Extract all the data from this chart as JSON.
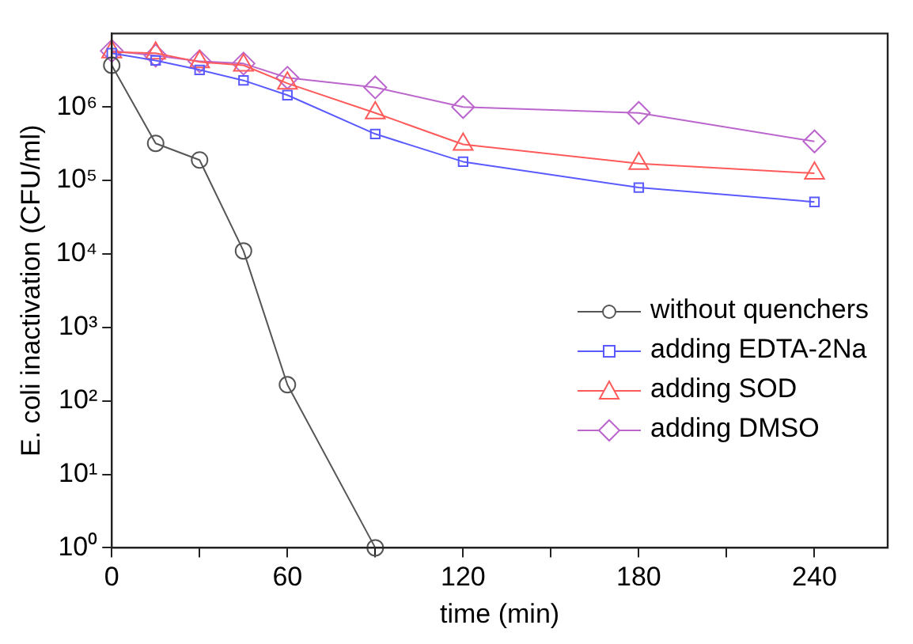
{
  "chart_data": {
    "type": "line",
    "xlabel": "time (min)",
    "ylabel": "E. coli inactivation (CFU/ml)",
    "log": "y",
    "grid": false,
    "legend": "right",
    "line_style": "solid",
    "xlim": [
      0,
      265
    ],
    "xticks": [
      0,
      {
        "value": 30,
        "label": null
      },
      60,
      {
        "value": 90,
        "label": null
      },
      120,
      {
        "value": 150,
        "label": null
      },
      180,
      {
        "value": 210,
        "label": null
      },
      240
    ],
    "ylim": [
      1,
      10000000
    ],
    "yticks": [
      {
        "value": 1,
        "label": "10⁰"
      },
      {
        "value": 10,
        "label": "10¹"
      },
      {
        "value": 100,
        "label": "10²"
      },
      {
        "value": 1000,
        "label": "10³"
      },
      {
        "value": 10000,
        "label": "10⁴"
      },
      {
        "value": 100000,
        "label": "10⁵"
      },
      {
        "value": 1000000,
        "label": "10⁶"
      }
    ],
    "series": [
      {
        "name": "without quenchers",
        "color": "#555555",
        "marker": "circle",
        "x": [
          0,
          15,
          30,
          45,
          60,
          90
        ],
        "values": [
          3700000,
          320000,
          190000,
          11000,
          166,
          1
        ]
      },
      {
        "name": "adding EDTA-2Na",
        "color": "#5a5aff",
        "marker": "square",
        "x": [
          0,
          15,
          30,
          45,
          60,
          90,
          120,
          180,
          240
        ],
        "values": [
          5400000,
          4300000,
          3200000,
          2300000,
          1450000,
          430000,
          180000,
          80000,
          51000
        ]
      },
      {
        "name": "adding SOD",
        "color": "#ff5a5a",
        "marker": "triangle",
        "x": [
          0,
          15,
          30,
          45,
          60,
          90,
          120,
          180,
          240
        ],
        "values": [
          5600000,
          5400000,
          4100000,
          3700000,
          2100000,
          830000,
          310000,
          170000,
          125000
        ]
      },
      {
        "name": "adding DMSO",
        "color": "#bb66cc",
        "marker": "diamond",
        "x": [
          0,
          15,
          30,
          45,
          60,
          90,
          120,
          180,
          240
        ],
        "values": [
          5800000,
          5000000,
          4200000,
          3900000,
          2500000,
          1850000,
          1000000,
          830000,
          340000
        ]
      }
    ]
  }
}
